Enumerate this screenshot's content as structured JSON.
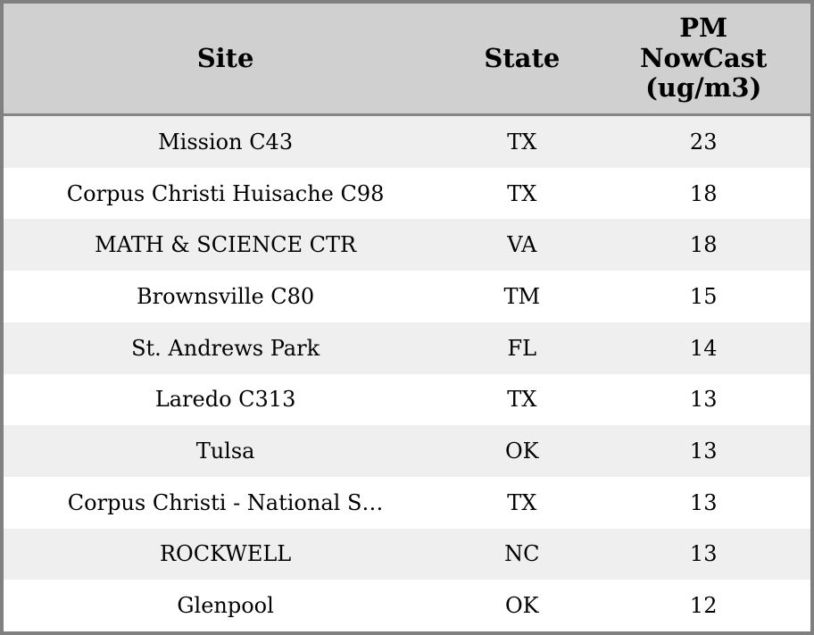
{
  "colors": {
    "border": "#808080",
    "header_bg": "#d0d0d0",
    "header_separator": "#868686",
    "row_alt_bg": "#efefef",
    "row_bg": "#ffffff",
    "text": "#000000"
  },
  "chart_data": {
    "type": "table",
    "title": "",
    "columns": [
      {
        "label": "Site"
      },
      {
        "label": "State"
      },
      {
        "label": "PM\nNowCast\n(ug/m3)"
      }
    ],
    "rows": [
      {
        "site": "Mission C43",
        "state": "TX",
        "value": 23
      },
      {
        "site": "Corpus Christi Huisache C98",
        "state": "TX",
        "value": 18
      },
      {
        "site": "MATH & SCIENCE CTR",
        "state": "VA",
        "value": 18
      },
      {
        "site": "Brownsville C80",
        "state": "TM",
        "value": 15
      },
      {
        "site": "St. Andrews Park",
        "state": "FL",
        "value": 14
      },
      {
        "site": "Laredo C313",
        "state": "TX",
        "value": 13
      },
      {
        "site": "Tulsa",
        "state": "OK",
        "value": 13
      },
      {
        "site": "Corpus Christi - National S…",
        "state": "TX",
        "value": 13
      },
      {
        "site": "ROCKWELL",
        "state": "NC",
        "value": 13
      },
      {
        "site": "Glenpool",
        "state": "OK",
        "value": 12
      }
    ]
  }
}
